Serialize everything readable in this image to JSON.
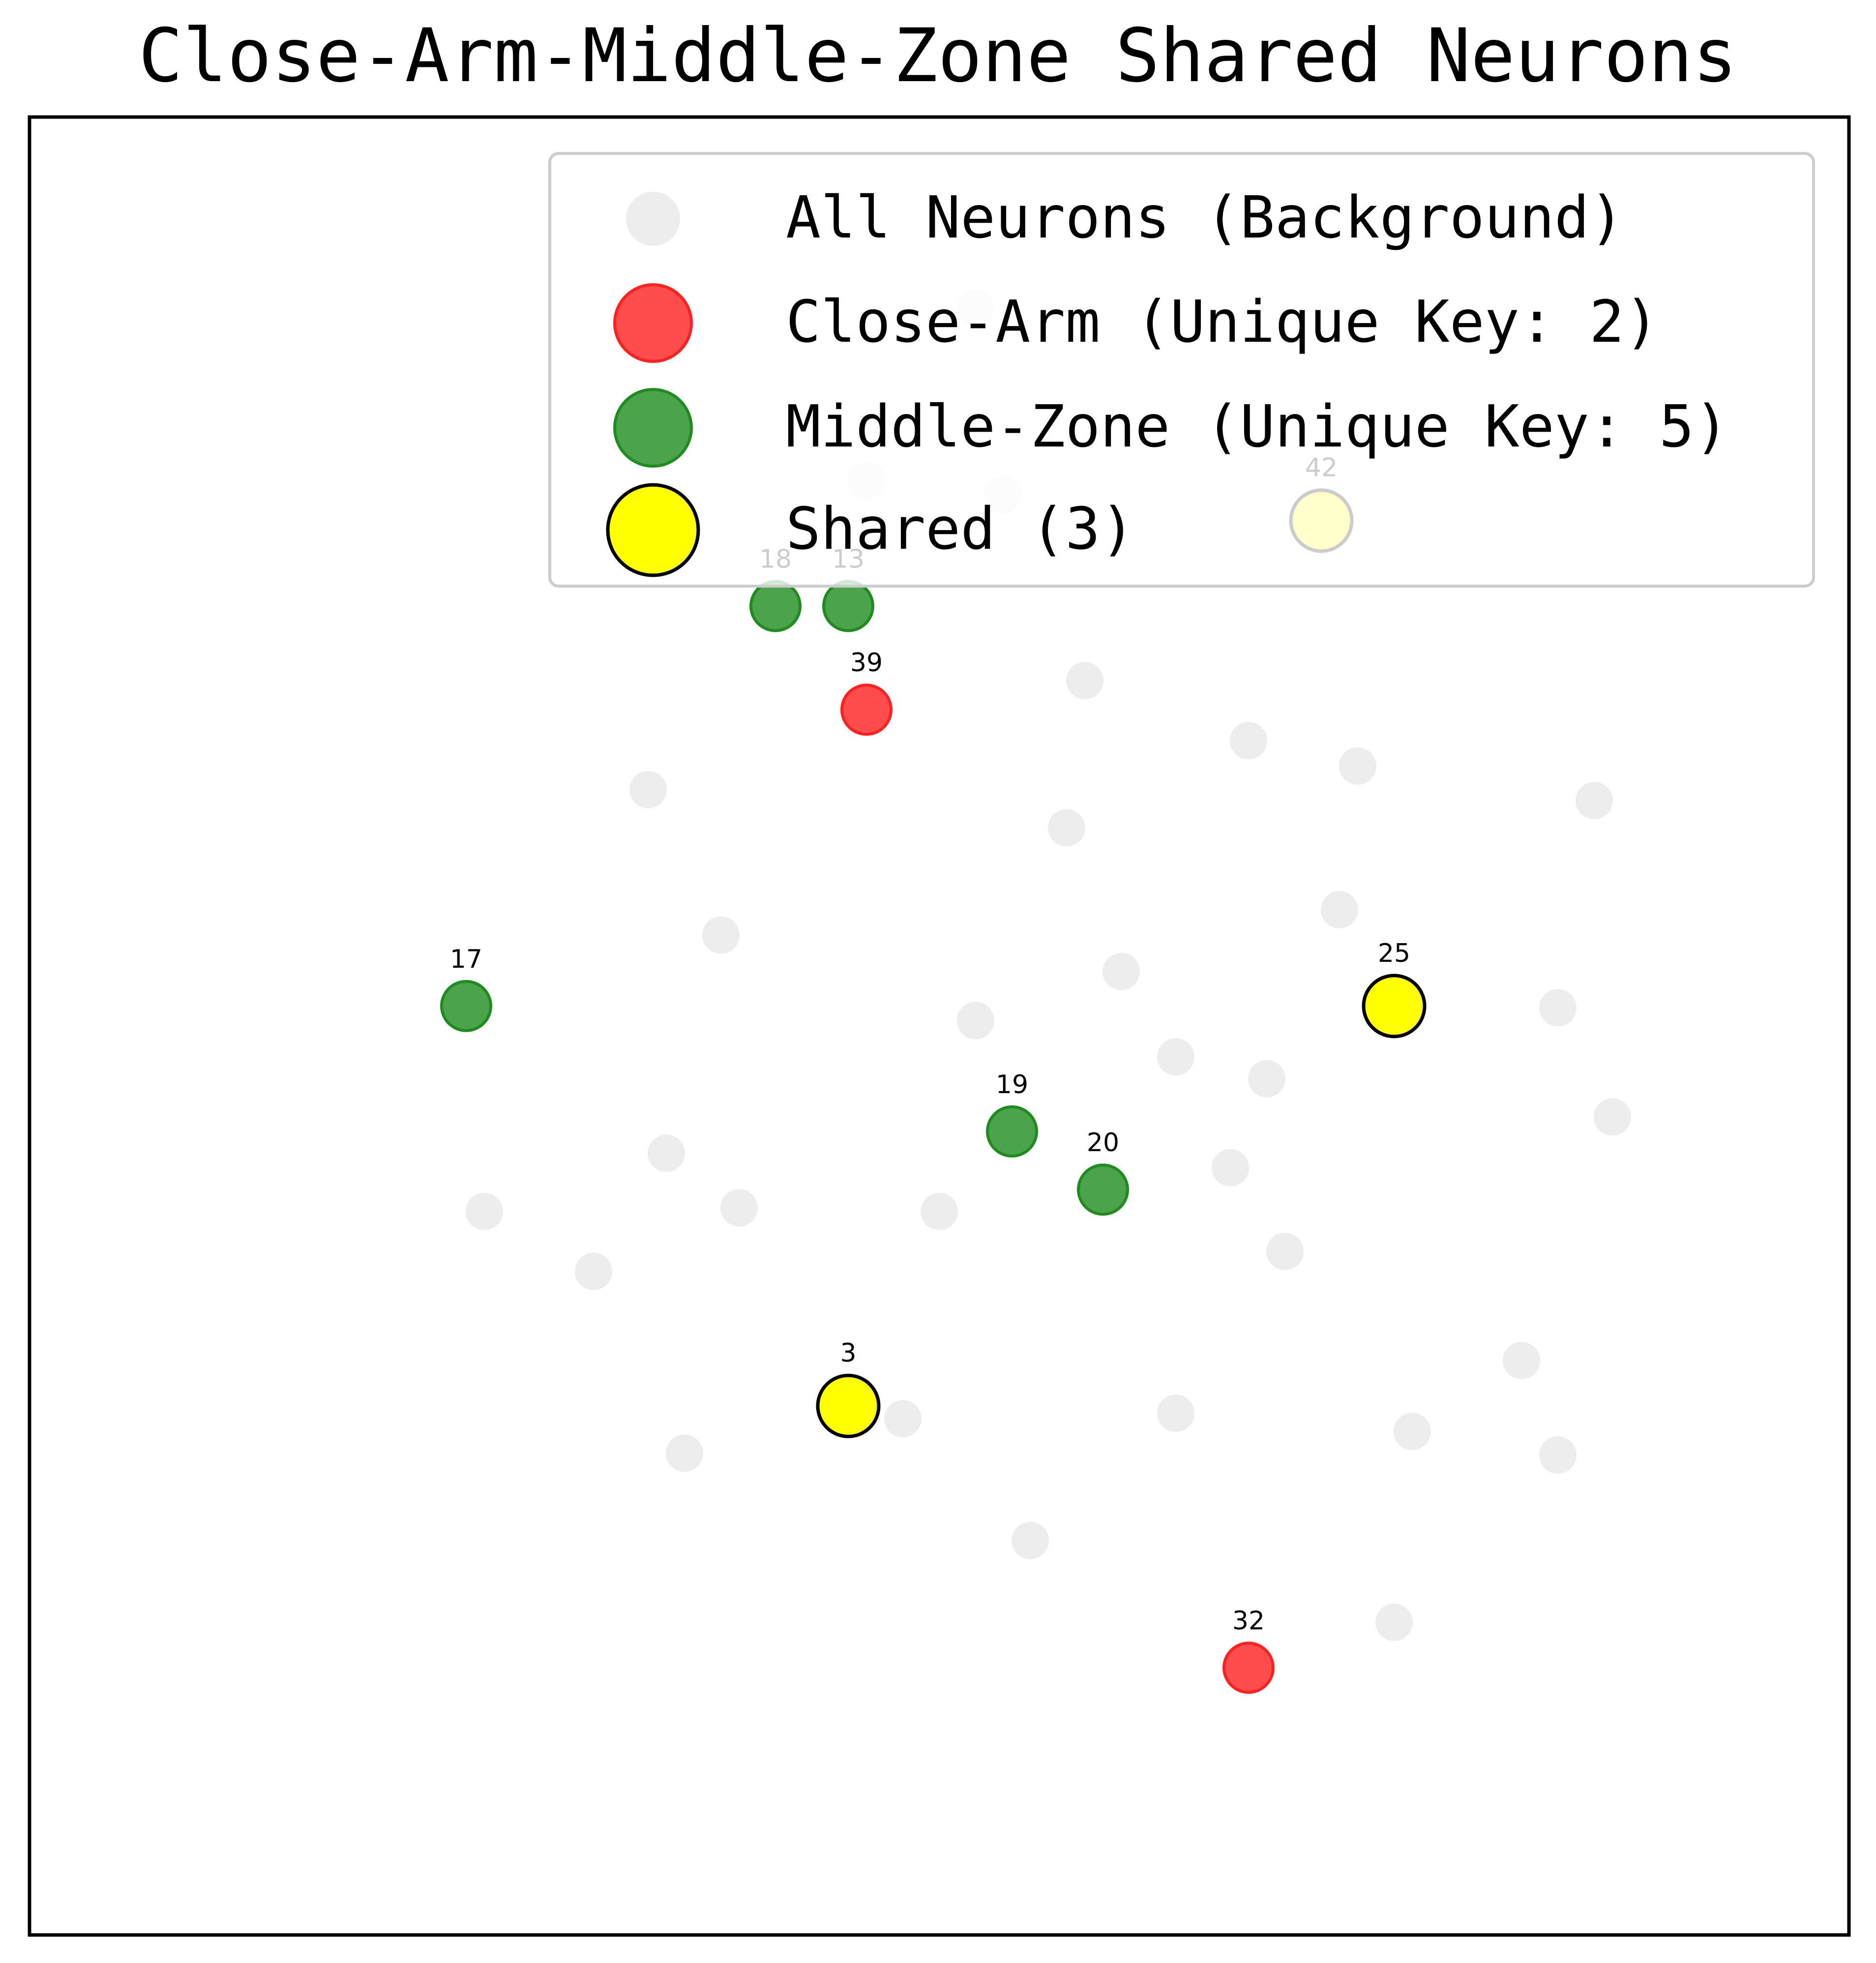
{
  "chart_data": {
    "type": "scatter",
    "title": "Close-Arm-Middle-Zone Shared Neurons",
    "xlabel": "",
    "ylabel": "",
    "axes_visible": false,
    "grid": false,
    "legend_position": "top-right",
    "colors": {
      "background": "#e6e6e6",
      "close_arm": "#ff2020",
      "middle_zone": "#1e8c1e",
      "shared": "#ffff00",
      "shared_edge": "#000000"
    },
    "legend": [
      {
        "key": "background",
        "label": "All Neurons (Background)"
      },
      {
        "key": "close_arm",
        "label": "Close-Arm (Unique Key: 2)"
      },
      {
        "key": "middle_zone",
        "label": "Middle-Zone (Unique Key: 5)"
      },
      {
        "key": "shared",
        "label": "Shared (3)"
      }
    ],
    "series": [
      {
        "key": "background",
        "points": [
          {
            "x": 52.0,
            "y": 10.5
          },
          {
            "x": 46.0,
            "y": 20.0
          },
          {
            "x": 53.5,
            "y": 20.8
          },
          {
            "x": 34.0,
            "y": 37.0
          },
          {
            "x": 58.0,
            "y": 31.0
          },
          {
            "x": 67.0,
            "y": 34.3
          },
          {
            "x": 73.0,
            "y": 35.7
          },
          {
            "x": 86.0,
            "y": 37.6
          },
          {
            "x": 57.0,
            "y": 39.1
          },
          {
            "x": 72.0,
            "y": 43.6
          },
          {
            "x": 84.0,
            "y": 49.0
          },
          {
            "x": 38.0,
            "y": 45.0
          },
          {
            "x": 60.0,
            "y": 47.0
          },
          {
            "x": 52.0,
            "y": 49.7
          },
          {
            "x": 63.0,
            "y": 51.7
          },
          {
            "x": 68.0,
            "y": 52.9
          },
          {
            "x": 87.0,
            "y": 55.0
          },
          {
            "x": 35.0,
            "y": 57.0
          },
          {
            "x": 66.0,
            "y": 57.8
          },
          {
            "x": 25.0,
            "y": 60.2
          },
          {
            "x": 39.0,
            "y": 60.0
          },
          {
            "x": 50.0,
            "y": 60.2
          },
          {
            "x": 31.0,
            "y": 63.5
          },
          {
            "x": 69.0,
            "y": 62.4
          },
          {
            "x": 82.0,
            "y": 68.4
          },
          {
            "x": 48.0,
            "y": 71.6
          },
          {
            "x": 63.0,
            "y": 71.3
          },
          {
            "x": 36.0,
            "y": 73.5
          },
          {
            "x": 76.0,
            "y": 72.3
          },
          {
            "x": 84.0,
            "y": 73.6
          },
          {
            "x": 55.0,
            "y": 78.3
          },
          {
            "x": 75.0,
            "y": 82.8
          }
        ]
      },
      {
        "key": "close_arm",
        "points": [
          {
            "id": "39",
            "x": 46.0,
            "y": 32.6
          },
          {
            "id": "32",
            "x": 67.0,
            "y": 85.3
          }
        ]
      },
      {
        "key": "middle_zone",
        "points": [
          {
            "id": "18",
            "x": 41.0,
            "y": 26.9
          },
          {
            "id": "13",
            "x": 45.0,
            "y": 26.9
          },
          {
            "id": "17",
            "x": 24.0,
            "y": 48.9
          },
          {
            "id": "19",
            "x": 54.0,
            "y": 55.8
          },
          {
            "id": "20",
            "x": 59.0,
            "y": 59.0
          }
        ]
      },
      {
        "key": "shared",
        "points": [
          {
            "id": "42",
            "x": 71.0,
            "y": 22.2
          },
          {
            "id": "25",
            "x": 75.0,
            "y": 48.9
          },
          {
            "id": "3",
            "x": 45.0,
            "y": 70.9
          }
        ]
      }
    ]
  }
}
